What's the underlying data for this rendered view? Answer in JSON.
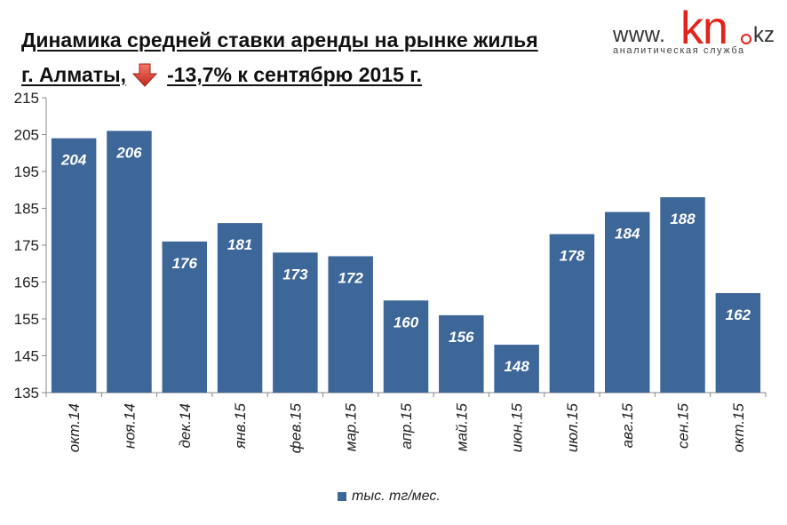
{
  "header": {
    "title_line1": "Динамика средней  ставки аренды на рынке жилья",
    "title_line2_left": "г. Алматы,",
    "title_line2_right": "-13,7%  к сентябрю 2015 г.",
    "arrow_icon": "red-down-arrow-icon"
  },
  "logo": {
    "www": "www.",
    "kn": "kn",
    "kz": "kz",
    "subtitle": "аналитическая служба"
  },
  "colors": {
    "bar": "#3d6699",
    "brand_red": "#e2231a",
    "axis": "#888888"
  },
  "chart_data": {
    "type": "bar",
    "categories": [
      "окт.14",
      "ноя.14",
      "дек.14",
      "янв.15",
      "фев.15",
      "мар.15",
      "апр.15",
      "май.15",
      "июн.15",
      "июл.15",
      "авг.15",
      "сен.15",
      "окт.15"
    ],
    "series": [
      {
        "name": "тыс. тг/мес.",
        "values": [
          204,
          206,
          176,
          181,
          173,
          172,
          160,
          156,
          148,
          178,
          184,
          188,
          162
        ]
      }
    ],
    "ylim": [
      135,
      215
    ],
    "yticks": [
      135,
      145,
      155,
      165,
      175,
      185,
      195,
      205,
      215
    ],
    "grid": false,
    "legend_position": "bottom"
  }
}
